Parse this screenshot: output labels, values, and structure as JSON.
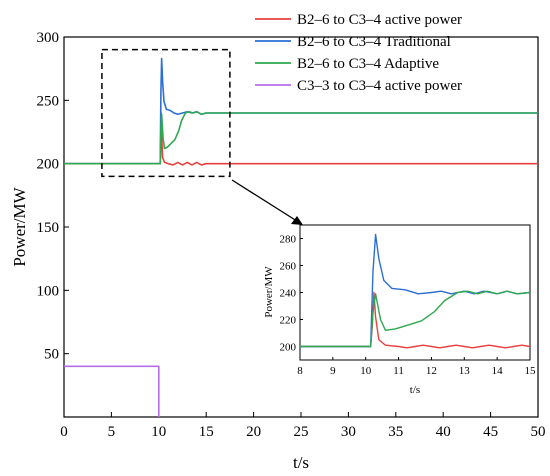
{
  "colors": {
    "red": "#e8413f",
    "blue": "#2b6fd6",
    "green": "#2fa84f",
    "purple": "#b46ee8",
    "axis": "#000000"
  },
  "chart_data": [
    {
      "type": "line",
      "role": "main",
      "xlabel": "t/s",
      "ylabel": "Power/MW",
      "xlim": [
        0,
        50
      ],
      "ylim": [
        0,
        300
      ],
      "xticks": [
        "0",
        "5",
        "10",
        "15",
        "20",
        "25",
        "30",
        "35",
        "40",
        "45",
        "50"
      ],
      "yticks": [
        "50",
        "100",
        "150",
        "200",
        "250",
        "300"
      ],
      "grid": false,
      "legend_position": "top-right",
      "zoom_box": {
        "x": [
          4,
          17.5
        ],
        "y": [
          190,
          290
        ]
      },
      "series": [
        {
          "name": "B2–6 to C3–4 active power",
          "color": "#e8413f",
          "points": [
            [
              0,
              200
            ],
            [
              10.15,
              200
            ],
            [
              10.2,
              215
            ],
            [
              10.25,
              240
            ],
            [
              10.3,
              222
            ],
            [
              10.4,
              205
            ],
            [
              10.6,
              201
            ],
            [
              11,
              200
            ],
            [
              11.5,
              199
            ],
            [
              12,
              201
            ],
            [
              12.5,
              199
            ],
            [
              13,
              201
            ],
            [
              13.5,
              199
            ],
            [
              14,
              201
            ],
            [
              14.5,
              199
            ],
            [
              15,
              200
            ],
            [
              15.5,
              200
            ],
            [
              16,
              200
            ],
            [
              17,
              200
            ],
            [
              20,
              200
            ],
            [
              25,
              200
            ],
            [
              30,
              200
            ],
            [
              35,
              200
            ],
            [
              40,
              200
            ],
            [
              45,
              200
            ],
            [
              50,
              200
            ]
          ]
        },
        {
          "name": "B2–6 to C3–4 Traditional",
          "color": "#2b6fd6",
          "points": [
            [
              0,
              200
            ],
            [
              10.15,
              200
            ],
            [
              10.22,
              255
            ],
            [
              10.3,
              283
            ],
            [
              10.4,
              265
            ],
            [
              10.55,
              249
            ],
            [
              10.8,
              243
            ],
            [
              11.2,
              242
            ],
            [
              11.6,
              240
            ],
            [
              12,
              239
            ],
            [
              12.5,
              240
            ],
            [
              13,
              241
            ],
            [
              13.5,
              240
            ],
            [
              14,
              241
            ],
            [
              14.5,
              239
            ],
            [
              15,
              240
            ],
            [
              16,
              240
            ],
            [
              17,
              240
            ],
            [
              20,
              240
            ],
            [
              25,
              240
            ],
            [
              30,
              240
            ],
            [
              35,
              240
            ],
            [
              40,
              240
            ],
            [
              45,
              240
            ],
            [
              50,
              240
            ]
          ]
        },
        {
          "name": "B2–6 to C3–4 Adaptive",
          "color": "#2fa84f",
          "points": [
            [
              0,
              200
            ],
            [
              10.15,
              200
            ],
            [
              10.22,
              225
            ],
            [
              10.3,
              239
            ],
            [
              10.45,
              220
            ],
            [
              10.6,
              212
            ],
            [
              10.9,
              213
            ],
            [
              11.3,
              216
            ],
            [
              11.7,
              219
            ],
            [
              12.1,
              226
            ],
            [
              12.4,
              234
            ],
            [
              12.8,
              240
            ],
            [
              13.2,
              241
            ],
            [
              13.6,
              240
            ],
            [
              14,
              241
            ],
            [
              14.5,
              239
            ],
            [
              15,
              240
            ],
            [
              16,
              240
            ],
            [
              17,
              240
            ],
            [
              20,
              240
            ],
            [
              25,
              240
            ],
            [
              30,
              240
            ],
            [
              35,
              240
            ],
            [
              40,
              240
            ],
            [
              45,
              240
            ],
            [
              50,
              240
            ]
          ]
        },
        {
          "name": "C3–3 to C3–4 active power",
          "color": "#b46ee8",
          "points": [
            [
              0,
              40
            ],
            [
              10,
              40
            ],
            [
              10,
              0
            ]
          ]
        }
      ]
    },
    {
      "type": "line",
      "role": "inset",
      "xlabel": "t/s",
      "ylabel": "Power/MW",
      "xlim": [
        8,
        15
      ],
      "ylim": [
        190,
        290
      ],
      "xticks": [
        "8",
        "9",
        "10",
        "11",
        "12",
        "13",
        "14",
        "15"
      ],
      "yticks": [
        "200",
        "220",
        "240",
        "260",
        "280"
      ],
      "grid": false,
      "series": [
        {
          "color": "#e8413f",
          "points": [
            [
              8,
              200
            ],
            [
              10.15,
              200
            ],
            [
              10.2,
              215
            ],
            [
              10.25,
              240
            ],
            [
              10.3,
              222
            ],
            [
              10.4,
              205
            ],
            [
              10.6,
              201
            ],
            [
              11,
              200
            ],
            [
              11.25,
              199
            ],
            [
              11.5,
              200
            ],
            [
              11.75,
              201
            ],
            [
              12,
              200
            ],
            [
              12.25,
              199
            ],
            [
              12.5,
              200
            ],
            [
              12.75,
              201
            ],
            [
              13,
              200
            ],
            [
              13.25,
              199
            ],
            [
              13.5,
              200
            ],
            [
              13.75,
              201
            ],
            [
              14,
              200
            ],
            [
              14.25,
              199
            ],
            [
              14.5,
              200
            ],
            [
              14.75,
              201
            ],
            [
              15,
              200
            ]
          ]
        },
        {
          "color": "#2b6fd6",
          "points": [
            [
              8,
              200
            ],
            [
              10.15,
              200
            ],
            [
              10.22,
              255
            ],
            [
              10.3,
              283
            ],
            [
              10.4,
              265
            ],
            [
              10.55,
              249
            ],
            [
              10.8,
              243
            ],
            [
              11.2,
              242
            ],
            [
              11.6,
              239
            ],
            [
              12,
              240
            ],
            [
              12.3,
              241
            ],
            [
              12.6,
              239
            ],
            [
              13,
              241
            ],
            [
              13.3,
              239
            ],
            [
              13.6,
              241
            ],
            [
              14,
              239
            ],
            [
              14.3,
              241
            ],
            [
              14.6,
              239
            ],
            [
              15,
              240
            ]
          ]
        },
        {
          "color": "#2fa84f",
          "points": [
            [
              8,
              200
            ],
            [
              10.15,
              200
            ],
            [
              10.22,
              225
            ],
            [
              10.3,
              239
            ],
            [
              10.45,
              220
            ],
            [
              10.6,
              212
            ],
            [
              10.9,
              213
            ],
            [
              11.3,
              216
            ],
            [
              11.7,
              219
            ],
            [
              12.1,
              226
            ],
            [
              12.4,
              234
            ],
            [
              12.8,
              240
            ],
            [
              13.1,
              241
            ],
            [
              13.4,
              239
            ],
            [
              13.7,
              241
            ],
            [
              14,
              239
            ],
            [
              14.3,
              241
            ],
            [
              14.6,
              239
            ],
            [
              15,
              240
            ]
          ]
        }
      ]
    }
  ]
}
